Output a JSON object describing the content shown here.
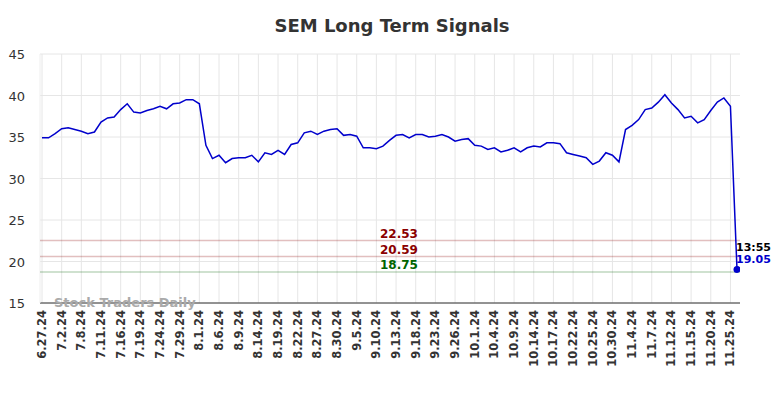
{
  "chart_data": {
    "type": "line",
    "title": "SEM Long Term Signals",
    "categories": [
      "6.27.24",
      null,
      null,
      "7.2.24",
      null,
      null,
      "7.8.24",
      null,
      null,
      "7.11.24",
      null,
      null,
      "7.16.24",
      null,
      null,
      "7.19.24",
      null,
      null,
      "7.24.24",
      null,
      null,
      "7.29.24",
      null,
      null,
      "8.1.24",
      null,
      null,
      "8.6.24",
      null,
      null,
      "8.9.24",
      null,
      null,
      "8.14.24",
      null,
      null,
      "8.19.24",
      null,
      null,
      "8.22.24",
      null,
      null,
      "8.27.24",
      null,
      null,
      "8.30.24",
      null,
      null,
      "9.5.24",
      null,
      null,
      "9.10.24",
      null,
      null,
      "9.13.24",
      null,
      null,
      "9.18.24",
      null,
      null,
      "9.23.24",
      null,
      null,
      "9.26.24",
      null,
      null,
      "10.1.24",
      null,
      null,
      "10.4.24",
      null,
      null,
      "10.9.24",
      null,
      null,
      "10.14.24",
      null,
      null,
      "10.17.24",
      null,
      null,
      "10.22.24",
      null,
      null,
      "10.25.24",
      null,
      null,
      "10.30.24",
      null,
      null,
      "11.4.24",
      null,
      null,
      "11.7.24",
      null,
      null,
      "11.12.24",
      null,
      null,
      "11.15.24",
      null,
      null,
      "11.20.24",
      null,
      null,
      "11.25.24",
      null
    ],
    "values": [
      34.9,
      34.9,
      35.4,
      36.0,
      36.1,
      35.9,
      35.7,
      35.4,
      35.6,
      36.8,
      37.3,
      37.4,
      38.3,
      39.0,
      38.0,
      37.9,
      38.2,
      38.4,
      38.7,
      38.4,
      39.0,
      39.1,
      39.5,
      39.5,
      39.0,
      34.0,
      32.4,
      32.8,
      31.9,
      32.4,
      32.5,
      32.5,
      32.8,
      32.0,
      33.1,
      32.9,
      33.4,
      32.9,
      34.1,
      34.3,
      35.5,
      35.7,
      35.3,
      35.7,
      35.9,
      36.0,
      35.2,
      35.3,
      35.1,
      33.7,
      33.7,
      33.6,
      33.9,
      34.6,
      35.2,
      35.3,
      34.9,
      35.3,
      35.3,
      35.0,
      35.1,
      35.3,
      35.0,
      34.5,
      34.7,
      34.8,
      34.0,
      33.9,
      33.5,
      33.7,
      33.2,
      33.4,
      33.7,
      33.2,
      33.7,
      33.9,
      33.8,
      34.3,
      34.3,
      34.2,
      33.1,
      32.9,
      32.7,
      32.5,
      31.7,
      32.1,
      33.1,
      32.8,
      32.0,
      35.9,
      36.4,
      37.1,
      38.3,
      38.5,
      39.2,
      40.1,
      39.1,
      38.3,
      37.3,
      37.5,
      36.7,
      37.1,
      38.2,
      39.2,
      39.7,
      38.7,
      19.05
    ],
    "color": "#0000cc",
    "ylim": [
      15,
      45
    ],
    "yticks": [
      15,
      20,
      25,
      30,
      35,
      40,
      45
    ],
    "grid": true,
    "reference_lines": [
      {
        "value": 22.53,
        "color": "#8b0000"
      },
      {
        "value": 20.59,
        "color": "#8b0000"
      },
      {
        "value": 18.75,
        "color": "#006400"
      }
    ],
    "last_time": "13:55",
    "watermark": "Stock Traders Daily"
  }
}
